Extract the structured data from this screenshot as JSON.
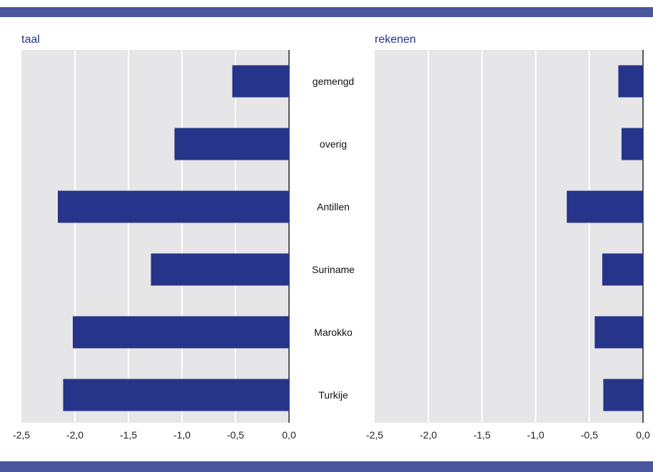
{
  "colors": {
    "band": "#4a559e",
    "plot_bg": "#e6e6e8",
    "bar": "#263489",
    "title": "#263489",
    "grid": "#ffffff",
    "axis": "#222222"
  },
  "chart_data": [
    {
      "type": "bar",
      "orientation": "horizontal",
      "title": "taal",
      "categories": [
        "gemengd",
        "overig",
        "Antillen",
        "Suriname",
        "Marokko",
        "Turkije"
      ],
      "values": [
        -0.53,
        -1.07,
        -2.16,
        -1.29,
        -2.02,
        -2.11
      ],
      "xlim": [
        -2.5,
        0.0
      ],
      "xticks": [
        "-2,5",
        "-2,0",
        "-1,5",
        "-1,0",
        "-0,5",
        "0,0"
      ],
      "grid": true
    },
    {
      "type": "bar",
      "orientation": "horizontal",
      "title": "rekenen",
      "categories": [
        "gemengd",
        "overig",
        "Antillen",
        "Suriname",
        "Marokko",
        "Turkije"
      ],
      "values": [
        -0.23,
        -0.2,
        -0.71,
        -0.38,
        -0.45,
        -0.37
      ],
      "xlim": [
        -2.5,
        0.0
      ],
      "xticks": [
        "-2,5",
        "-2,0",
        "-1,5",
        "-1,0",
        "-0,5",
        "0,0"
      ],
      "grid": true
    }
  ]
}
